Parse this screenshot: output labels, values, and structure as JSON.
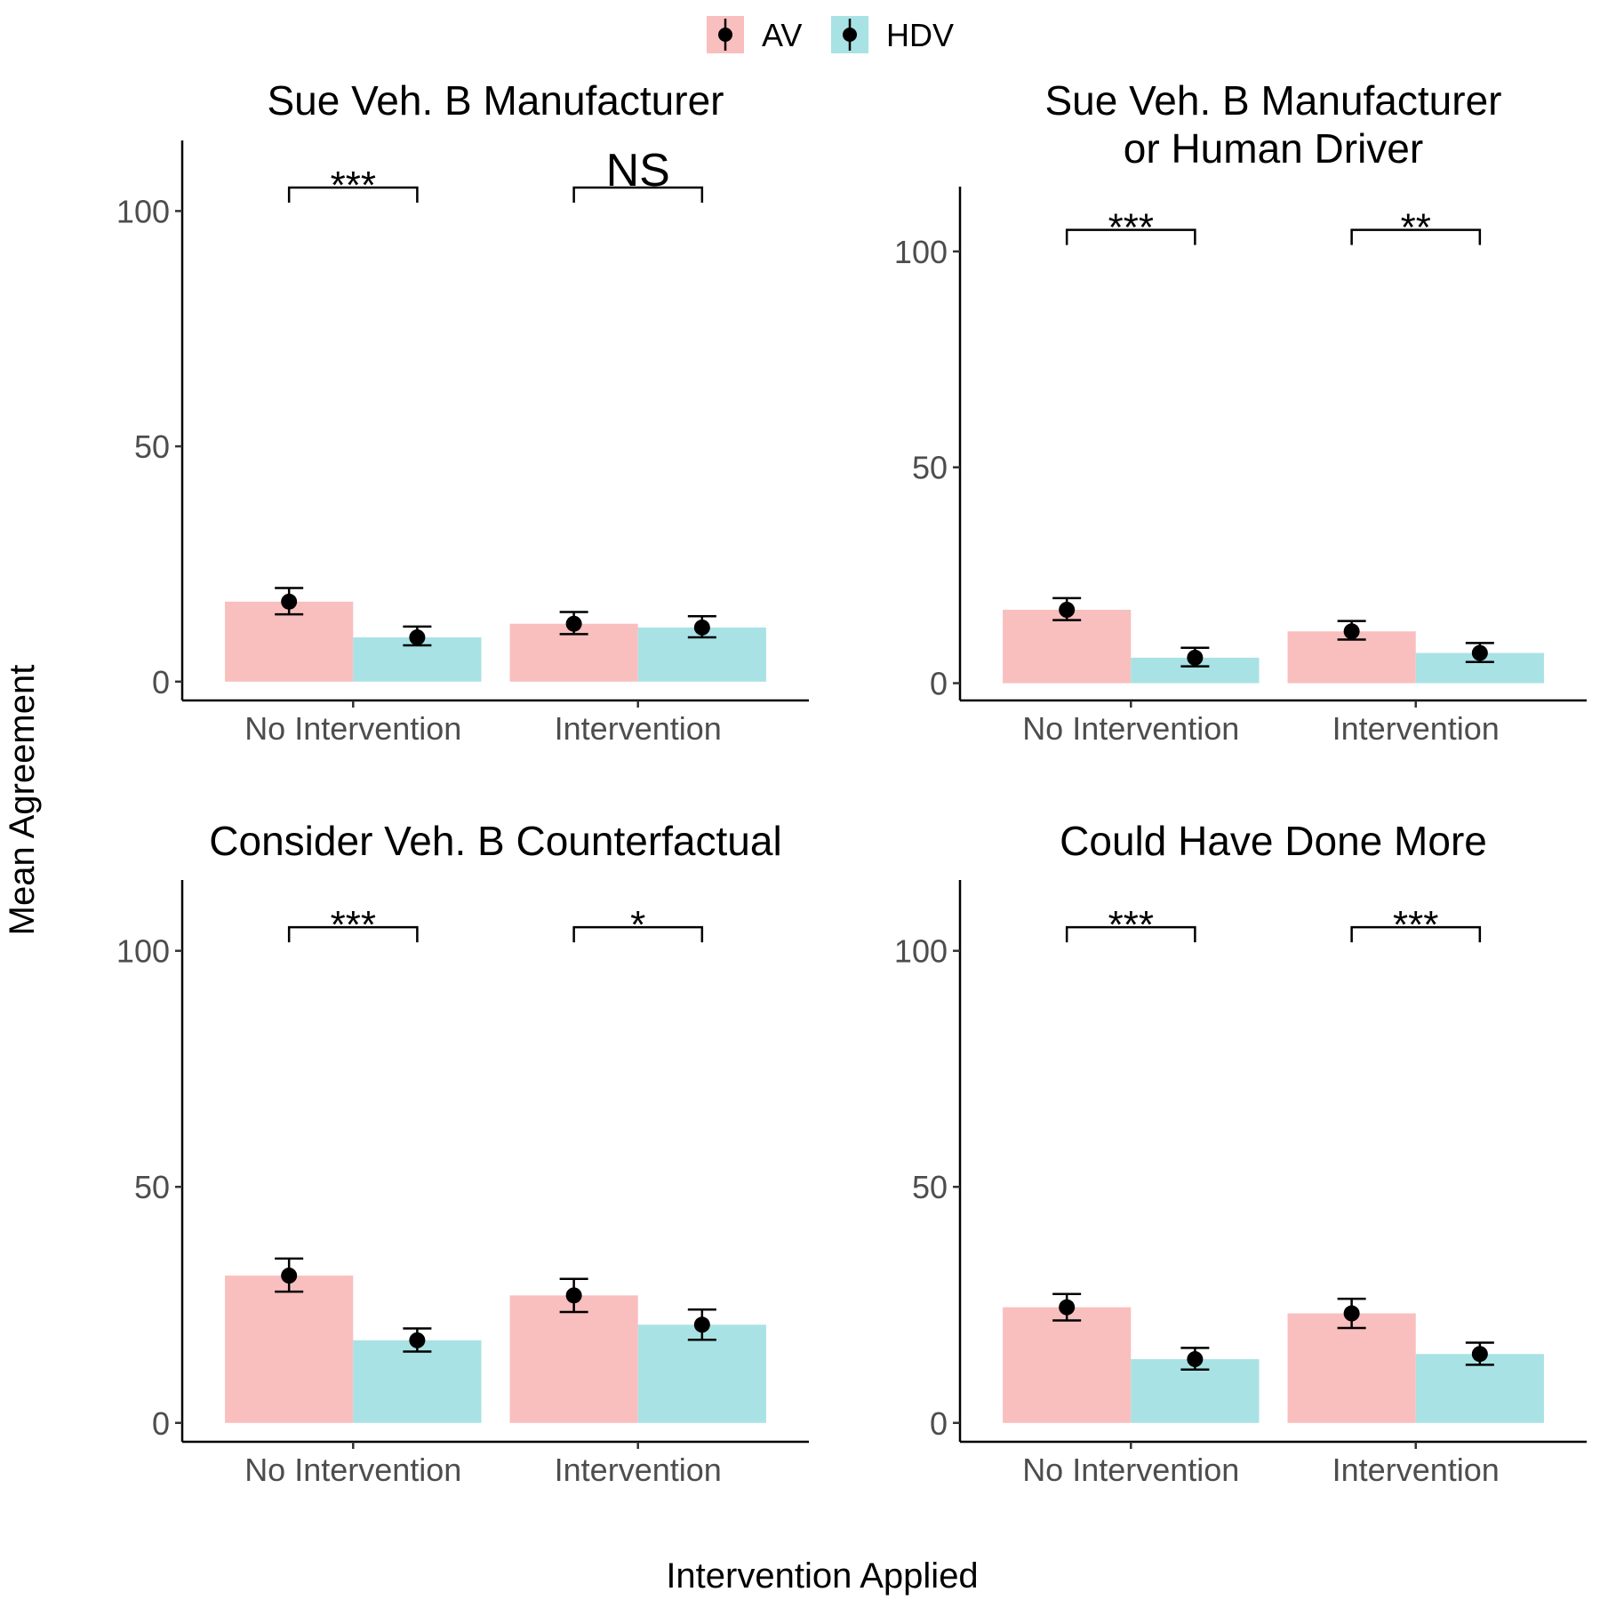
{
  "colors": {
    "AV": "#F8BFBE",
    "HDV": "#A8E2E4",
    "ink": "#000000",
    "tick_text": "#4d4d4d"
  },
  "legend": {
    "position": "top",
    "entries": [
      {
        "label": "AV",
        "color": "#F8BFBE"
      },
      {
        "label": "HDV",
        "color": "#A8E2E4"
      }
    ]
  },
  "axes": {
    "xlabel": "Intervention Applied",
    "ylabel": "Mean Agreement"
  },
  "chart_data": [
    {
      "type": "bar",
      "title": [
        "Sue Veh. B Manufacturer"
      ],
      "categories": [
        "No Intervention",
        "Intervention"
      ],
      "ylim": [
        -4,
        115
      ],
      "yticks": [
        0,
        50,
        100
      ],
      "grid": false,
      "series": [
        {
          "name": "AV",
          "values": [
            17,
            12.3
          ],
          "error_low": [
            14.3,
            10.1
          ],
          "error_high": [
            19.9,
            14.8
          ]
        },
        {
          "name": "HDV",
          "values": [
            9.4,
            11.5
          ],
          "error_low": [
            7.7,
            9.4
          ],
          "error_high": [
            11.7,
            13.9
          ]
        }
      ],
      "significance": [
        {
          "category": "No Intervention",
          "label": "***",
          "y": 105
        },
        {
          "category": "Intervention",
          "label": "NS",
          "y": 105
        }
      ]
    },
    {
      "type": "bar",
      "title": [
        "Sue Veh. B Manufacturer",
        "or Human Driver"
      ],
      "categories": [
        "No Intervention",
        "Intervention"
      ],
      "ylim": [
        -4,
        115
      ],
      "yticks": [
        0,
        50,
        100
      ],
      "grid": false,
      "series": [
        {
          "name": "AV",
          "values": [
            17,
            12
          ],
          "error_low": [
            14.6,
            10.1
          ],
          "error_high": [
            19.7,
            14.4
          ]
        },
        {
          "name": "HDV",
          "values": [
            5.9,
            7
          ],
          "error_low": [
            3.9,
            4.9
          ],
          "error_high": [
            8.2,
            9.3
          ]
        }
      ],
      "significance": [
        {
          "category": "No Intervention",
          "label": "***",
          "y": 105
        },
        {
          "category": "Intervention",
          "label": "**",
          "y": 105
        }
      ]
    },
    {
      "type": "bar",
      "title": [
        "Consider Veh. B Counterfactual"
      ],
      "categories": [
        "No Intervention",
        "Intervention"
      ],
      "ylim": [
        -4,
        115
      ],
      "yticks": [
        0,
        50,
        100
      ],
      "grid": false,
      "series": [
        {
          "name": "AV",
          "values": [
            31.2,
            27
          ],
          "error_low": [
            27.8,
            23.5
          ],
          "error_high": [
            34.8,
            30.5
          ]
        },
        {
          "name": "HDV",
          "values": [
            17.5,
            20.8
          ],
          "error_low": [
            15.1,
            17.6
          ],
          "error_high": [
            20,
            24
          ]
        }
      ],
      "significance": [
        {
          "category": "No Intervention",
          "label": "***",
          "y": 105
        },
        {
          "category": "Intervention",
          "label": "*",
          "y": 105
        }
      ]
    },
    {
      "type": "bar",
      "title": [
        "Could Have Done More"
      ],
      "categories": [
        "No Intervention",
        "Intervention"
      ],
      "ylim": [
        -4,
        115
      ],
      "yticks": [
        0,
        50,
        100
      ],
      "grid": false,
      "series": [
        {
          "name": "AV",
          "values": [
            24.5,
            23.2
          ],
          "error_low": [
            21.7,
            20.1
          ],
          "error_high": [
            27.3,
            26.3
          ]
        },
        {
          "name": "HDV",
          "values": [
            13.5,
            14.6
          ],
          "error_low": [
            11.3,
            12.3
          ],
          "error_high": [
            15.9,
            17
          ]
        }
      ],
      "significance": [
        {
          "category": "No Intervention",
          "label": "***",
          "y": 105
        },
        {
          "category": "Intervention",
          "label": "***",
          "y": 105
        }
      ]
    }
  ]
}
